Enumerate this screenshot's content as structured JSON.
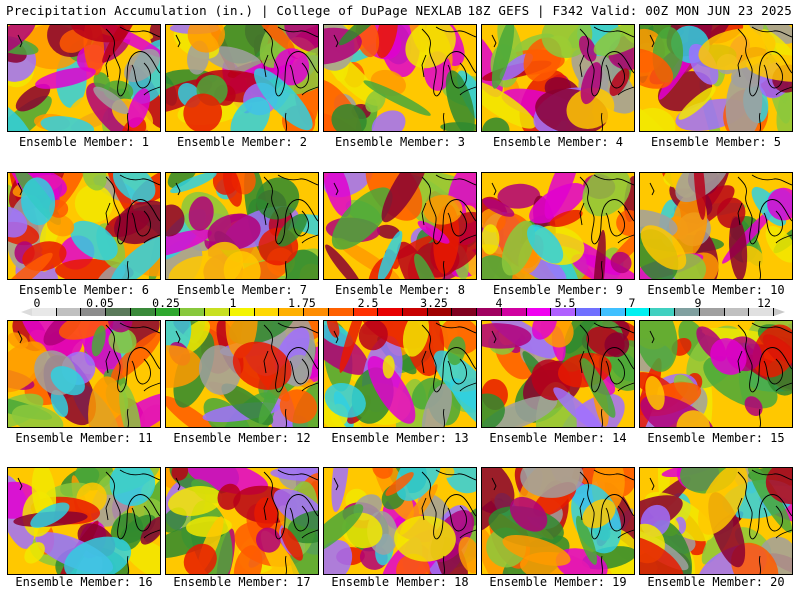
{
  "header": {
    "title": "Precipitation Accumulation (in.) | College of DuPage NEXLAB",
    "run_info": "18Z GEFS | F342 Valid: 00Z MON JUN 23 2025"
  },
  "panels": [
    {
      "label": "Ensemble Member: 1"
    },
    {
      "label": "Ensemble Member: 2"
    },
    {
      "label": "Ensemble Member: 3"
    },
    {
      "label": "Ensemble Member: 4"
    },
    {
      "label": "Ensemble Member: 5"
    },
    {
      "label": "Ensemble Member: 6"
    },
    {
      "label": "Ensemble Member: 7"
    },
    {
      "label": "Ensemble Member: 8"
    },
    {
      "label": "Ensemble Member: 9"
    },
    {
      "label": "Ensemble Member: 10"
    },
    {
      "label": "Ensemble Member: 11"
    },
    {
      "label": "Ensemble Member: 12"
    },
    {
      "label": "Ensemble Member: 13"
    },
    {
      "label": "Ensemble Member: 14"
    },
    {
      "label": "Ensemble Member: 15"
    },
    {
      "label": "Ensemble Member: 16"
    },
    {
      "label": "Ensemble Member: 17"
    },
    {
      "label": "Ensemble Member: 18"
    },
    {
      "label": "Ensemble Member: 19"
    },
    {
      "label": "Ensemble Member: 20"
    }
  ],
  "legend": {
    "ticks": [
      "0",
      "0.05",
      "0.25",
      "1",
      "1.75",
      "2.5",
      "3.25",
      "4",
      "5.5",
      "7",
      "9",
      "12"
    ],
    "colors": [
      "#e8e8e8",
      "#c0c0c0",
      "#8c8c8c",
      "#5a7a5a",
      "#3a8a3a",
      "#2fa82f",
      "#88c83c",
      "#c8e020",
      "#f4f400",
      "#ffd800",
      "#ffb000",
      "#ff8c00",
      "#ff6000",
      "#ff3000",
      "#e80000",
      "#c80000",
      "#a00000",
      "#800020",
      "#a00060",
      "#d000a0",
      "#f000f0",
      "#b060ff",
      "#7070ff",
      "#40c0ff",
      "#00f0f0",
      "#40d0c0",
      "#80a0a0",
      "#a0a0a0",
      "#c0c0c0",
      "#e0e0e0"
    ]
  }
}
